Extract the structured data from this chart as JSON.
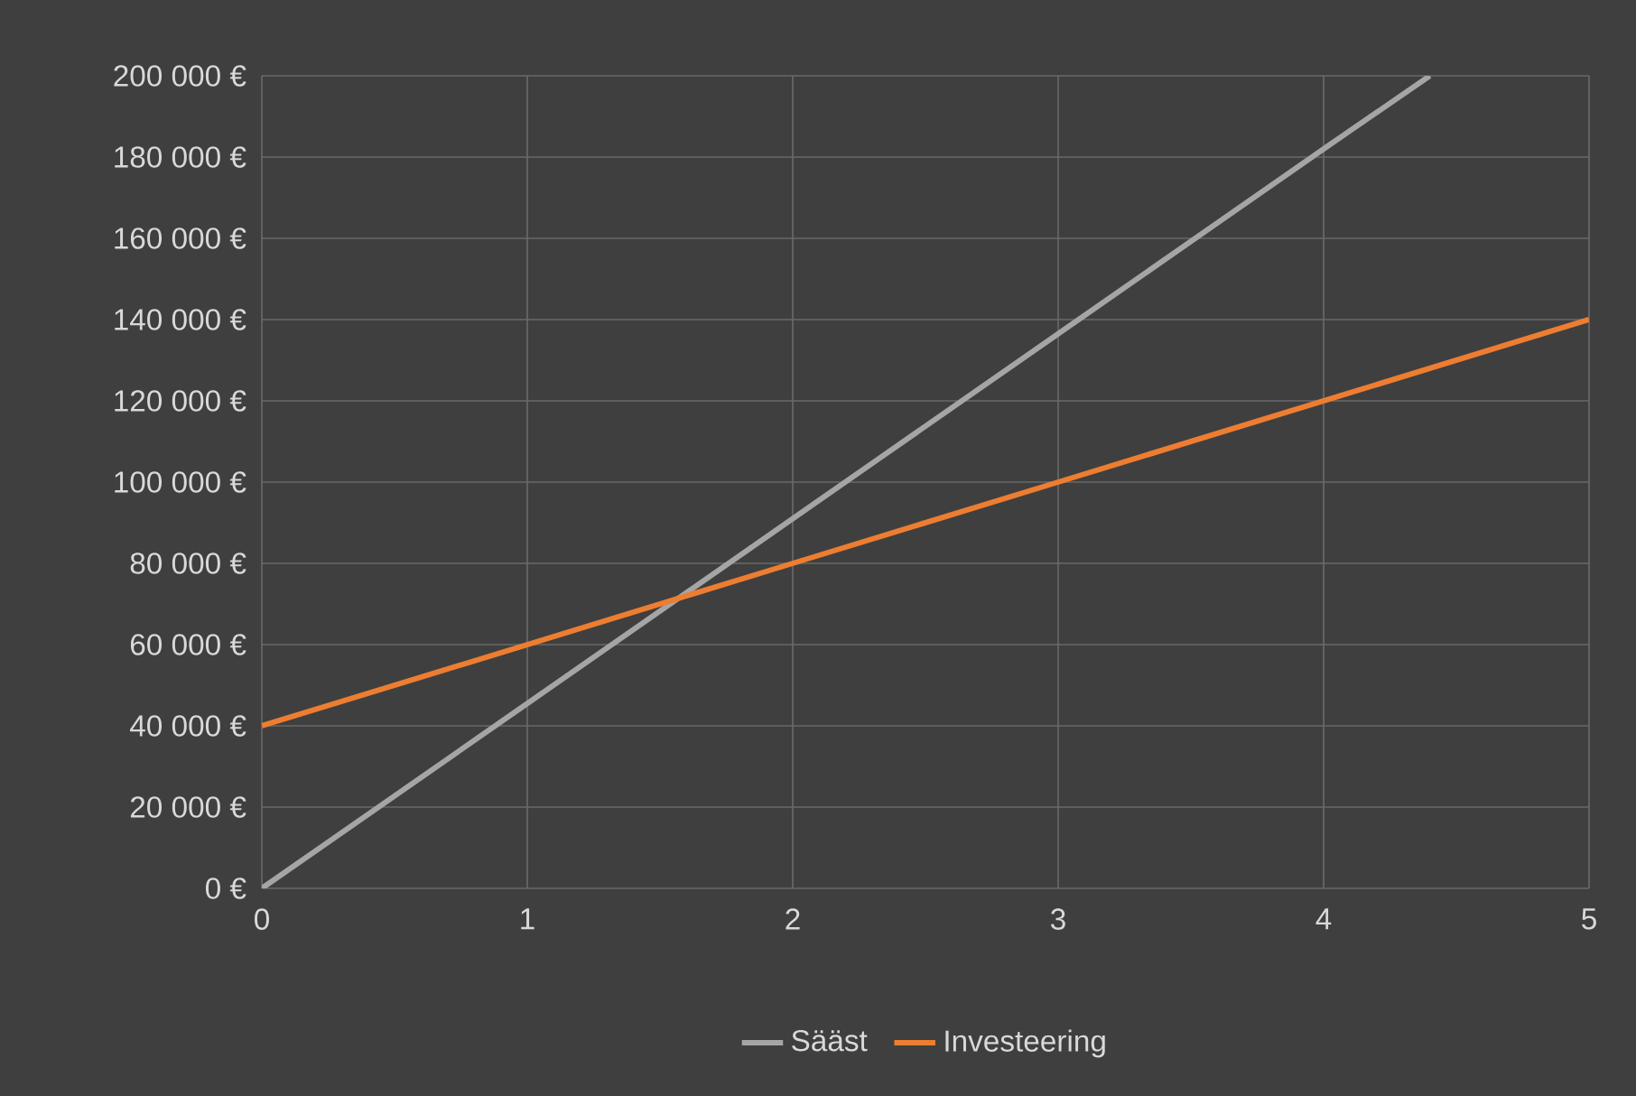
{
  "chart_data": {
    "type": "line",
    "xlim": [
      0,
      5
    ],
    "xticks": [
      0,
      1,
      2,
      3,
      4,
      5
    ],
    "ylim": [
      0,
      200000
    ],
    "yticks": [
      {
        "value": 0,
        "label": "0 €"
      },
      {
        "value": 20000,
        "label": "20 000 €"
      },
      {
        "value": 40000,
        "label": "40 000 €"
      },
      {
        "value": 60000,
        "label": "60 000 €"
      },
      {
        "value": 80000,
        "label": "80 000 €"
      },
      {
        "value": 100000,
        "label": "100 000 €"
      },
      {
        "value": 120000,
        "label": "120 000 €"
      },
      {
        "value": 140000,
        "label": "140 000 €"
      },
      {
        "value": 160000,
        "label": "160 000 €"
      },
      {
        "value": 180000,
        "label": "180 000 €"
      },
      {
        "value": 200000,
        "label": "200 000 €"
      }
    ],
    "series": [
      {
        "name": "Sääst",
        "color": "#a5a5a5",
        "x": [
          0,
          1,
          2,
          3,
          4,
          4.4
        ],
        "values": [
          0,
          45500,
          91000,
          136500,
          182000,
          200000
        ]
      },
      {
        "name": "Investeering",
        "color": "#ed7d31",
        "x": [
          0,
          1,
          2,
          3,
          4,
          5
        ],
        "values": [
          40000,
          60000,
          80000,
          100000,
          120000,
          140000
        ]
      }
    ],
    "grid": true,
    "legend": "bottom",
    "marker": "none",
    "line_style": "solid"
  }
}
